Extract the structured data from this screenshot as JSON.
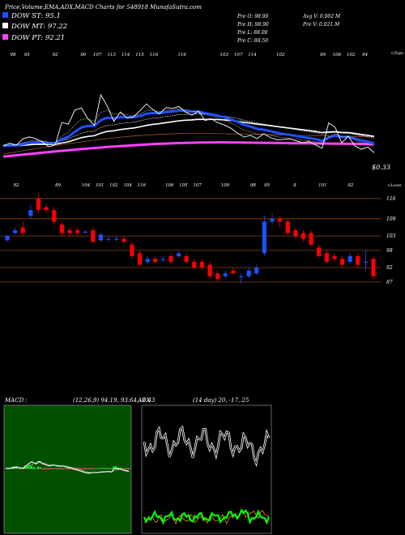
{
  "header": {
    "title": "Price,Volume,EMA,ADX,MACD Charts for 548918  MunafaSutra.com",
    "ohlc": [
      "Pre  O: 98.90",
      "Pre  H: 98.90",
      "Pre  L: 88.00",
      "Pre  C: 88.50"
    ],
    "volume": [
      "Avg V: 0.002  M",
      "Pre  V: 0.021 M"
    ]
  },
  "legend": [
    {
      "label": "DOW ST: 95.1",
      "color": "#1e50ff"
    },
    {
      "label": "DOW MT: 97.22",
      "color": "#ffffff"
    },
    {
      "label": "DOW PT: 92.21",
      "color": "#ff40ff"
    }
  ],
  "colors": {
    "up": "#1e50ff",
    "down": "#ff0000",
    "grid": "#8b4513",
    "adx_di_plus": "#00ff00",
    "adx_di_minus": "#ff8c00",
    "macd_hist": "#00ff00"
  },
  "chart_data": [
    {
      "type": "line",
      "panel": "ema",
      "top_labels": [
        "98",
        "95",
        "",
        "92",
        "",
        "90",
        "107",
        "113",
        "114",
        "115",
        "116",
        "",
        "116",
        "",
        "",
        "103",
        "107",
        "114",
        "",
        "102",
        "",
        "",
        "99",
        "106",
        "102",
        "94",
        ""
      ],
      "top_label_right": "<Tops",
      "bottom_labels": [
        "92",
        "",
        "",
        "89",
        "",
        "104",
        "101",
        "102",
        "104",
        "116",
        "",
        "106",
        "105",
        "107",
        "",
        "109",
        "",
        "98",
        "95",
        "",
        "8",
        "",
        "101",
        "",
        "92",
        ""
      ],
      "bottom_label_right": "<Lows",
      "value_label": "$0.33",
      "price_series": [
        95.1,
        96.2,
        95.4,
        97.8,
        98.6,
        97.9,
        96.7,
        94.8,
        95.6,
        104.2,
        103.5,
        108.9,
        109.8,
        105.6,
        103.1,
        114.8,
        110.4,
        104.6,
        108.2,
        105.9,
        106.3,
        108.7,
        111.3,
        109.1,
        107.5,
        109.9,
        109.6,
        110.3,
        108.2,
        107.0,
        108.5,
        104.9,
        105.6,
        104.0,
        103.2,
        101.9,
        100.1,
        98.5,
        99.2,
        97.9,
        99.8,
        98.4,
        97.5,
        97.6,
        97.8,
        97.1,
        96.4,
        96.8,
        95.5,
        94.2,
        104.0,
        102.3,
        96.3,
        98.9,
        95.2,
        93.8,
        94.7,
        92.5
      ]
    },
    {
      "type": "bar",
      "panel": "price",
      "yticks": [
        116,
        109,
        103,
        98,
        92,
        87
      ]
    },
    {
      "type": "line",
      "panel": "macd",
      "title": "MACD",
      "params": "(12,26,9) 94.19, 93.64, -1.43"
    },
    {
      "type": "line",
      "panel": "adx",
      "title": "ADX",
      "params": "(14 day) 20, -17, 25"
    }
  ]
}
